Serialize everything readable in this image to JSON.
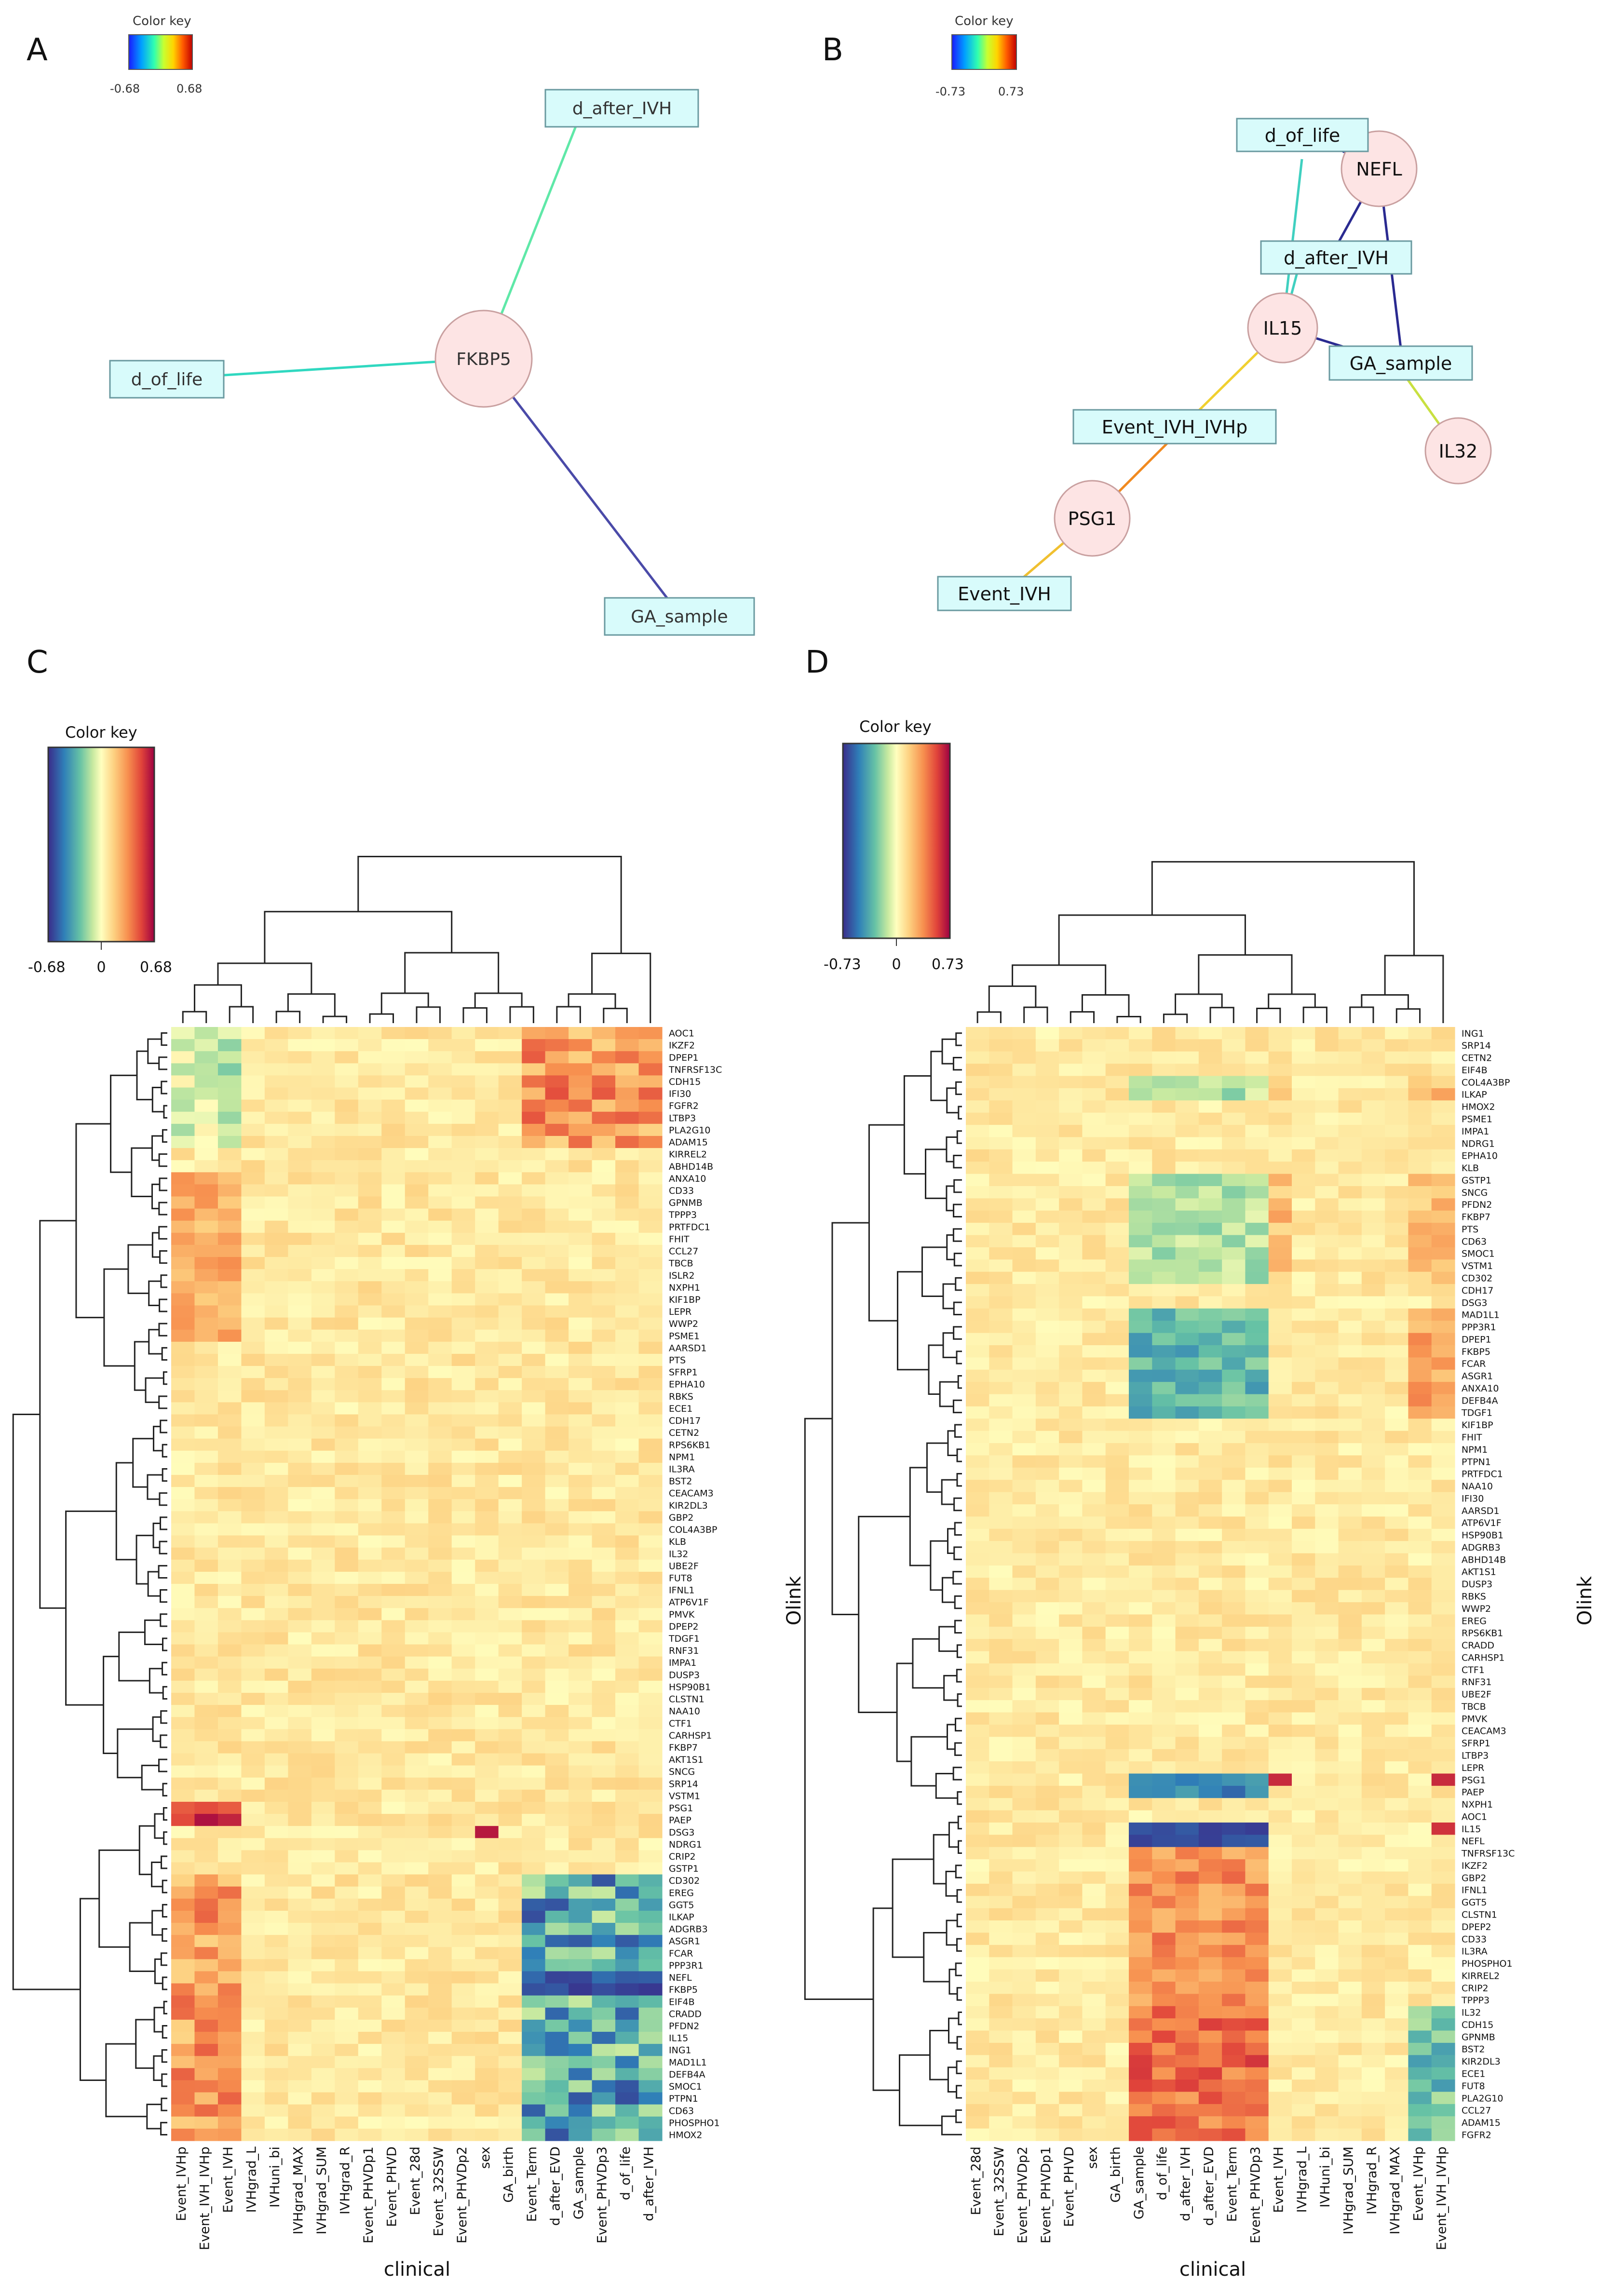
{
  "panels": {
    "A": "A",
    "B": "B",
    "C": "C",
    "D": "D"
  },
  "color_key_label": "Color key",
  "colors": {
    "node_fill": "#fde4e4",
    "node_stroke": "#c9a0a0",
    "box_fill": "#d8fbfb",
    "box_stroke": "#6a9aa0",
    "dendro": "#222222"
  },
  "chart_data": [
    {
      "id": "A",
      "type": "network",
      "color_key": {
        "min": -0.68,
        "max": 0.68,
        "ticks": [
          "-0.68",
          "0.68"
        ]
      },
      "nodes": [
        {
          "id": "FKBP5",
          "kind": "protein"
        },
        {
          "id": "d_after_IVH",
          "kind": "clinical"
        },
        {
          "id": "d_of_life",
          "kind": "clinical"
        },
        {
          "id": "GA_sample",
          "kind": "clinical"
        }
      ],
      "edges": [
        {
          "source": "FKBP5",
          "target": "d_after_IVH",
          "r": -0.3
        },
        {
          "source": "FKBP5",
          "target": "d_of_life",
          "r": -0.38
        },
        {
          "source": "FKBP5",
          "target": "GA_sample",
          "r": -0.66
        }
      ]
    },
    {
      "id": "B",
      "type": "network",
      "color_key": {
        "min": -0.73,
        "max": 0.73,
        "ticks": [
          "-0.73",
          "0.73"
        ]
      },
      "nodes": [
        {
          "id": "NEFL",
          "kind": "protein"
        },
        {
          "id": "IL15",
          "kind": "protein"
        },
        {
          "id": "IL32",
          "kind": "protein"
        },
        {
          "id": "PSG1",
          "kind": "protein"
        },
        {
          "id": "d_of_life",
          "kind": "clinical"
        },
        {
          "id": "d_after_IVH",
          "kind": "clinical"
        },
        {
          "id": "GA_sample",
          "kind": "clinical"
        },
        {
          "id": "Event_IVH_IVHp",
          "kind": "clinical"
        },
        {
          "id": "Event_IVH",
          "kind": "clinical"
        }
      ],
      "edges": [
        {
          "source": "NEFL",
          "target": "d_of_life",
          "r": -0.62
        },
        {
          "source": "NEFL",
          "target": "d_after_IVH",
          "r": -0.7
        },
        {
          "source": "NEFL",
          "target": "GA_sample",
          "r": -0.72
        },
        {
          "source": "IL15",
          "target": "d_of_life",
          "r": -0.4
        },
        {
          "source": "IL15",
          "target": "d_after_IVH",
          "r": -0.45
        },
        {
          "source": "IL15",
          "target": "GA_sample",
          "r": -0.71
        },
        {
          "source": "IL15",
          "target": "Event_IVH_IVHp",
          "r": 0.36
        },
        {
          "source": "IL32",
          "target": "GA_sample",
          "r": 0.3
        },
        {
          "source": "PSG1",
          "target": "Event_IVH_IVHp",
          "r": 0.55
        },
        {
          "source": "PSG1",
          "target": "Event_IVH",
          "r": 0.45
        }
      ]
    },
    {
      "id": "C",
      "type": "heatmap",
      "color_key": {
        "min": -0.68,
        "max": 0.68,
        "ticks": [
          "-0.68",
          "0",
          "0.68"
        ]
      },
      "xlabel": "clinical",
      "ylabel": "Olink",
      "columns": [
        "Event_IVHp",
        "Event_IVH_IVHp",
        "Event_IVH",
        "IVHgrad_L",
        "IVHuni_bi",
        "IVHgrad_MAX",
        "IVHgrad_SUM",
        "IVHgrad_R",
        "Event_PHVDp1",
        "Event_PHVD",
        "Event_28d",
        "Event_32SSW",
        "Event_PHVDp2",
        "sex",
        "GA_birth",
        "Event_Term",
        "d_after_EVD",
        "GA_sample",
        "Event_PHVDp3",
        "d_of_life",
        "d_after_IVH"
      ],
      "rows": [
        "AOC1",
        "IKZF2",
        "DPEP1",
        "TNFRSF13C",
        "CDH15",
        "IFI30",
        "FGFR2",
        "LTBP3",
        "PLA2G10",
        "ADAM15",
        "KIRREL2",
        "ABHD14B",
        "ANXA10",
        "CD33",
        "GPNMB",
        "TPPP3",
        "PRTFDC1",
        "FHIT",
        "CCL27",
        "TBCB",
        "ISLR2",
        "NXPH1",
        "KIF1BP",
        "LEPR",
        "WWP2",
        "PSME1",
        "AARSD1",
        "PTS",
        "SFRP1",
        "EPHA10",
        "RBKS",
        "ECE1",
        "CDH17",
        "CETN2",
        "RPS6KB1",
        "NPM1",
        "IL3RA",
        "BST2",
        "CEACAM3",
        "KIR2DL3",
        "GBP2",
        "COL4A3BP",
        "KLB",
        "IL32",
        "UBE2F",
        "FUT8",
        "IFNL1",
        "ATP6V1F",
        "PMVK",
        "DPEP2",
        "TDGF1",
        "RNF31",
        "IMPA1",
        "DUSP3",
        "HSP90B1",
        "CLSTN1",
        "NAA10",
        "CTF1",
        "CARHSP1",
        "FKBP7",
        "AKT1S1",
        "SNCG",
        "SRP14",
        "VSTM1",
        "PSG1",
        "PAEP",
        "DSG3",
        "NDRG1",
        "CRIP2",
        "GSTP1",
        "CD302",
        "EREG",
        "GGT5",
        "ILKAP",
        "ADGRB3",
        "ASGR1",
        "FCAR",
        "PPP3R1",
        "NEFL",
        "FKBP5",
        "EIF4B",
        "CRADD",
        "PFDN2",
        "IL15",
        "ING1",
        "MAD1L1",
        "DEFB4A",
        "SMOC1",
        "PTPN1",
        "CD63",
        "PHOSPHO1",
        "HMOX2"
      ]
    },
    {
      "id": "D",
      "type": "heatmap",
      "color_key": {
        "min": -0.73,
        "max": 0.73,
        "ticks": [
          "-0.73",
          "0",
          "0.73"
        ]
      },
      "xlabel": "clinical",
      "ylabel": "Olink",
      "columns": [
        "Event_28d",
        "Event_32SSW",
        "Event_PHVDp2",
        "Event_PHVDp1",
        "Event_PHVD",
        "sex",
        "GA_birth",
        "GA_sample",
        "d_of_life",
        "d_after_IVH",
        "d_after_EVD",
        "Event_Term",
        "Event_PHVDp3",
        "Event_IVH",
        "IVHgrad_L",
        "IVHuni_bi",
        "IVHgrad_SUM",
        "IVHgrad_R",
        "IVHgrad_MAX",
        "Event_IVHp",
        "Event_IVH_IVHp"
      ],
      "rows": [
        "ING1",
        "SRP14",
        "CETN2",
        "EIF4B",
        "COL4A3BP",
        "ILKAP",
        "HMOX2",
        "PSME1",
        "IMPA1",
        "NDRG1",
        "EPHA10",
        "KLB",
        "GSTP1",
        "SNCG",
        "PFDN2",
        "FKBP7",
        "PTS",
        "CD63",
        "SMOC1",
        "VSTM1",
        "CD302",
        "CDH17",
        "DSG3",
        "MAD1L1",
        "PPP3R1",
        "DPEP1",
        "FKBP5",
        "FCAR",
        "ASGR1",
        "ANXA10",
        "DEFB4A",
        "TDGF1",
        "KIF1BP",
        "FHIT",
        "NPM1",
        "PTPN1",
        "PRTFDC1",
        "NAA10",
        "IFI30",
        "AARSD1",
        "ATP6V1F",
        "HSP90B1",
        "ADGRB3",
        "ABHD14B",
        "AKT1S1",
        "DUSP3",
        "RBKS",
        "WWP2",
        "EREG",
        "RPS6KB1",
        "CRADD",
        "CARHSP1",
        "CTF1",
        "RNF31",
        "UBE2F",
        "TBCB",
        "PMVK",
        "CEACAM3",
        "SFRP1",
        "LTBP3",
        "LEPR",
        "PSG1",
        "PAEP",
        "NXPH1",
        "AOC1",
        "IL15",
        "NEFL",
        "TNFRSF13C",
        "IKZF2",
        "GBP2",
        "IFNL1",
        "GGT5",
        "CLSTN1",
        "DPEP2",
        "CD33",
        "IL3RA",
        "PHOSPHO1",
        "KIRREL2",
        "CRIP2",
        "TPPP3",
        "IL32",
        "CDH15",
        "GPNMB",
        "BST2",
        "KIR2DL3",
        "ECE1",
        "FUT8",
        "PLA2G10",
        "CCL27",
        "ADAM15",
        "FGFR2"
      ]
    }
  ]
}
